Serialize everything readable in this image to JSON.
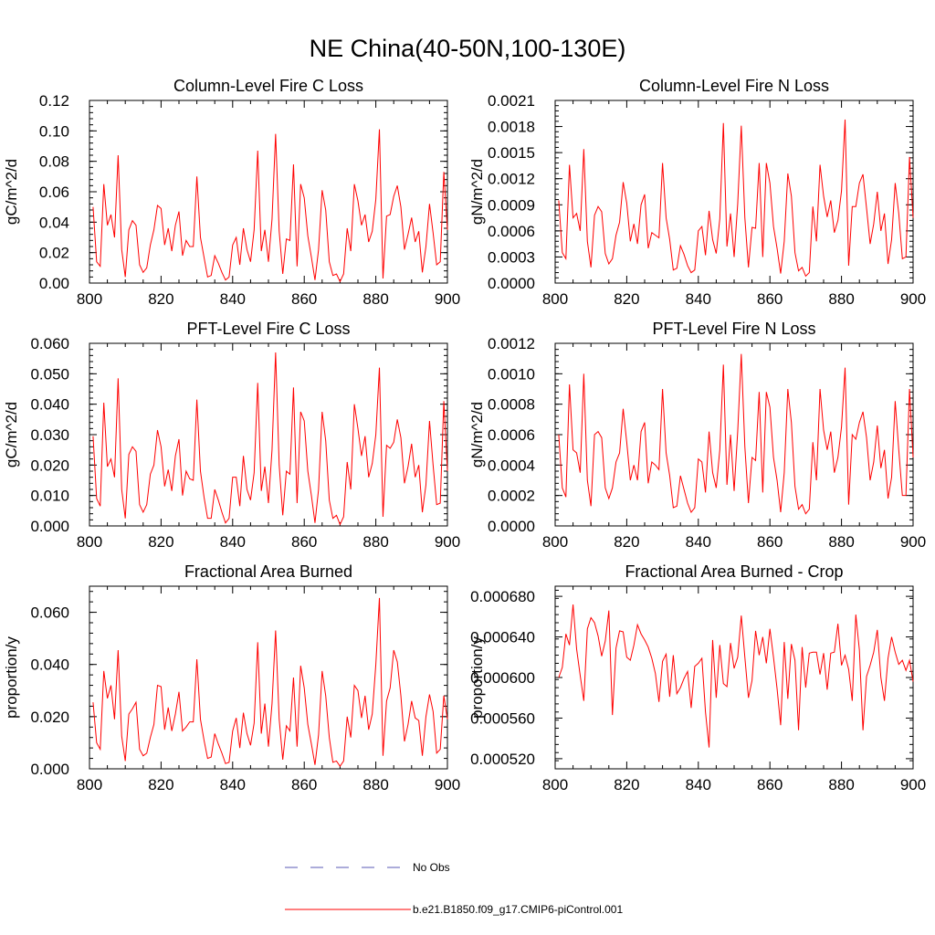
{
  "figure": {
    "title": "NE China(40-50N,100-130E)",
    "legend": [
      {
        "label": "No Obs",
        "color": "#5a5ab4",
        "style": "dashed"
      },
      {
        "label": "b.e21.B1850.f09_g17.CMIP6-piControl.001",
        "color": "#ff0000",
        "style": "solid"
      }
    ]
  },
  "chart_data": [
    {
      "type": "line",
      "title": "Column-Level Fire C Loss",
      "xlabel": "",
      "ylabel": "gC/m^2/d",
      "xlim": [
        800,
        900
      ],
      "ylim": [
        0,
        0.12
      ],
      "xticks": [
        "800",
        "820",
        "840",
        "860",
        "880",
        "900"
      ],
      "yticks": [
        "0.00",
        "0.02",
        "0.04",
        "0.06",
        "0.08",
        "0.10",
        "0.12"
      ],
      "series": [
        {
          "name": "b.e21.B1850.f09_g17.CMIP6-piControl.001",
          "color": "#ff0000",
          "x_start": 801,
          "values": [
            0.05,
            0.014,
            0.011,
            0.065,
            0.038,
            0.045,
            0.03,
            0.084,
            0.022,
            0.004,
            0.035,
            0.041,
            0.038,
            0.012,
            0.007,
            0.01,
            0.025,
            0.035,
            0.051,
            0.049,
            0.025,
            0.036,
            0.021,
            0.038,
            0.047,
            0.018,
            0.028,
            0.024,
            0.024,
            0.07,
            0.03,
            0.017,
            0.004,
            0.005,
            0.018,
            0.013,
            0.007,
            0.002,
            0.004,
            0.025,
            0.03,
            0.012,
            0.036,
            0.022,
            0.014,
            0.035,
            0.087,
            0.021,
            0.035,
            0.014,
            0.042,
            0.098,
            0.034,
            0.006,
            0.029,
            0.028,
            0.078,
            0.011,
            0.065,
            0.056,
            0.031,
            0.017,
            0.002,
            0.022,
            0.061,
            0.048,
            0.014,
            0.005,
            0.006,
            0.001,
            0.006,
            0.036,
            0.021,
            0.065,
            0.054,
            0.038,
            0.045,
            0.027,
            0.034,
            0.055,
            0.101,
            0.003,
            0.044,
            0.045,
            0.057,
            0.064,
            0.05,
            0.022,
            0.032,
            0.043,
            0.027,
            0.034,
            0.007,
            0.024,
            0.052,
            0.033,
            0.012,
            0.014,
            0.073,
            0.035
          ]
        }
      ]
    },
    {
      "type": "line",
      "title": "Column-Level Fire N Loss",
      "xlabel": "",
      "ylabel": "gN/m^2/d",
      "xlim": [
        800,
        900
      ],
      "ylim": [
        0,
        0.0021
      ],
      "xticks": [
        "800",
        "820",
        "840",
        "860",
        "880",
        "900"
      ],
      "yticks": [
        "0.0000",
        "0.0003",
        "0.0006",
        "0.0009",
        "0.0012",
        "0.0015",
        "0.0018",
        "0.0021"
      ],
      "series": [
        {
          "name": "b.e21.B1850.f09_g17.CMIP6-piControl.001",
          "color": "#ff0000",
          "x_start": 801,
          "values": [
            0.00095,
            0.00035,
            0.00028,
            0.00136,
            0.00075,
            0.0008,
            0.0006,
            0.00154,
            0.00048,
            0.00018,
            0.00078,
            0.00088,
            0.00082,
            0.00034,
            0.00022,
            0.00028,
            0.00055,
            0.0007,
            0.00116,
            0.00092,
            0.00048,
            0.00068,
            0.00045,
            0.0009,
            0.00102,
            0.0004,
            0.00058,
            0.00055,
            0.00052,
            0.00138,
            0.00075,
            0.0005,
            0.00015,
            0.00017,
            0.00043,
            0.00033,
            0.0002,
            0.00012,
            0.00015,
            0.0006,
            0.00065,
            0.00032,
            0.00083,
            0.0005,
            0.00034,
            0.00074,
            0.00184,
            0.00042,
            0.0008,
            0.0003,
            0.00091,
            0.00181,
            0.00075,
            0.00018,
            0.00064,
            0.00063,
            0.00138,
            0.0003,
            0.00138,
            0.00115,
            0.00065,
            0.0004,
            0.00011,
            0.00048,
            0.00126,
            0.001,
            0.00035,
            0.00014,
            0.00018,
            8e-05,
            0.00012,
            0.00088,
            0.00048,
            0.00136,
            0.001,
            0.00076,
            0.00095,
            0.00058,
            0.00072,
            0.00106,
            0.00188,
            0.0002,
            0.00088,
            0.00088,
            0.00115,
            0.00125,
            0.00086,
            0.00045,
            0.00068,
            0.00105,
            0.0006,
            0.0008,
            0.00022,
            0.0005,
            0.00115,
            0.0008,
            0.00028,
            0.0003,
            0.00145,
            0.00075
          ]
        }
      ]
    },
    {
      "type": "line",
      "title": "PFT-Level Fire C Loss",
      "xlabel": "",
      "ylabel": "gC/m^2/d",
      "xlim": [
        800,
        900
      ],
      "ylim": [
        0,
        0.06
      ],
      "xticks": [
        "800",
        "820",
        "840",
        "860",
        "880",
        "900"
      ],
      "yticks": [
        "0.000",
        "0.010",
        "0.020",
        "0.030",
        "0.040",
        "0.050",
        "0.060"
      ],
      "series": [
        {
          "name": "b.e21.B1850.f09_g17.CMIP6-piControl.001",
          "color": "#ff0000",
          "x_start": 801,
          "values": [
            0.0295,
            0.009,
            0.0065,
            0.0405,
            0.0195,
            0.022,
            0.016,
            0.0485,
            0.012,
            0.0025,
            0.0235,
            0.026,
            0.0245,
            0.007,
            0.0045,
            0.007,
            0.017,
            0.02,
            0.0315,
            0.026,
            0.013,
            0.0185,
            0.0115,
            0.023,
            0.0285,
            0.01,
            0.018,
            0.0155,
            0.015,
            0.0415,
            0.018,
            0.0095,
            0.0025,
            0.0025,
            0.012,
            0.0085,
            0.0045,
            0.001,
            0.0025,
            0.016,
            0.016,
            0.0065,
            0.023,
            0.012,
            0.0085,
            0.0175,
            0.047,
            0.0115,
            0.0195,
            0.0075,
            0.025,
            0.057,
            0.02,
            0.0035,
            0.018,
            0.017,
            0.0455,
            0.0075,
            0.0375,
            0.0345,
            0.018,
            0.01,
            0.001,
            0.012,
            0.0375,
            0.028,
            0.0085,
            0.0025,
            0.0035,
            0.0005,
            0.003,
            0.021,
            0.012,
            0.04,
            0.032,
            0.023,
            0.0295,
            0.016,
            0.0205,
            0.03,
            0.052,
            0.003,
            0.0265,
            0.0255,
            0.0275,
            0.035,
            0.029,
            0.014,
            0.0195,
            0.027,
            0.016,
            0.02,
            0.0045,
            0.0135,
            0.0345,
            0.02,
            0.007,
            0.0075,
            0.041,
            0.018
          ]
        }
      ]
    },
    {
      "type": "line",
      "title": "PFT-Level Fire N Loss",
      "xlabel": "",
      "ylabel": "gN/m^2/d",
      "xlim": [
        800,
        900
      ],
      "ylim": [
        0,
        0.0012
      ],
      "xticks": [
        "800",
        "820",
        "840",
        "860",
        "880",
        "900"
      ],
      "yticks": [
        "0.0000",
        "0.0002",
        "0.0004",
        "0.0006",
        "0.0008",
        "0.0010",
        "0.0012"
      ],
      "series": [
        {
          "name": "b.e21.B1850.f09_g17.CMIP6-piControl.001",
          "color": "#ff0000",
          "x_start": 801,
          "values": [
            0.0006,
            0.00025,
            0.00019,
            0.00093,
            0.0005,
            0.00048,
            0.00035,
            0.001,
            0.0003,
            0.00013,
            0.0006,
            0.00062,
            0.00058,
            0.00025,
            0.00018,
            0.00025,
            0.00042,
            0.00048,
            0.00077,
            0.00055,
            0.0003,
            0.0004,
            0.0003,
            0.00062,
            0.00068,
            0.00028,
            0.00042,
            0.0004,
            0.00037,
            0.0009,
            0.00048,
            0.00033,
            0.00012,
            0.00013,
            0.00033,
            0.00024,
            0.00015,
            9e-05,
            0.00012,
            0.00044,
            0.00042,
            0.00022,
            0.00062,
            0.00035,
            0.00025,
            0.0005,
            0.00106,
            0.00027,
            0.0006,
            0.00023,
            0.00062,
            0.00113,
            0.00052,
            0.00015,
            0.00045,
            0.00043,
            0.00088,
            0.00022,
            0.00088,
            0.00078,
            0.00045,
            0.0003,
            9e-05,
            0.00035,
            0.0009,
            0.00068,
            0.00026,
            0.00011,
            0.00014,
            8e-05,
            0.00011,
            0.00055,
            0.0003,
            0.0009,
            0.00063,
            0.0005,
            0.00062,
            0.00035,
            0.00045,
            0.00065,
            0.00104,
            0.00014,
            0.0006,
            0.00057,
            0.00068,
            0.00075,
            0.00058,
            0.0003,
            0.00042,
            0.00066,
            0.00038,
            0.0005,
            0.00018,
            0.00032,
            0.00082,
            0.0005,
            0.0002,
            0.0002,
            0.0009,
            0.00045
          ]
        }
      ]
    },
    {
      "type": "line",
      "title": "Fractional Area Burned",
      "xlabel": "",
      "ylabel": "proportion/y",
      "xlim": [
        800,
        900
      ],
      "ylim": [
        0,
        0.07
      ],
      "xticks": [
        "800",
        "820",
        "840",
        "860",
        "880",
        "900"
      ],
      "yticks": [
        "0.000",
        "0.020",
        "0.040",
        "0.060"
      ],
      "series": [
        {
          "name": "b.e21.B1850.f09_g17.CMIP6-piControl.001",
          "color": "#ff0000",
          "x_start": 801,
          "values": [
            0.0255,
            0.01,
            0.0075,
            0.0375,
            0.027,
            0.032,
            0.019,
            0.0455,
            0.0125,
            0.003,
            0.021,
            0.023,
            0.0255,
            0.0075,
            0.005,
            0.006,
            0.012,
            0.017,
            0.032,
            0.0315,
            0.015,
            0.0235,
            0.0145,
            0.021,
            0.0295,
            0.0145,
            0.016,
            0.018,
            0.018,
            0.042,
            0.019,
            0.011,
            0.004,
            0.0045,
            0.0135,
            0.0095,
            0.006,
            0.002,
            0.0025,
            0.0145,
            0.0195,
            0.008,
            0.0215,
            0.0135,
            0.009,
            0.0175,
            0.0485,
            0.0135,
            0.025,
            0.0085,
            0.025,
            0.053,
            0.019,
            0.0035,
            0.0165,
            0.0145,
            0.035,
            0.0085,
            0.0395,
            0.031,
            0.017,
            0.0095,
            0.0015,
            0.013,
            0.0375,
            0.028,
            0.012,
            0.0025,
            0.003,
            0.001,
            0.003,
            0.02,
            0.012,
            0.032,
            0.03,
            0.0195,
            0.028,
            0.015,
            0.021,
            0.04,
            0.0655,
            0.005,
            0.026,
            0.031,
            0.0455,
            0.041,
            0.028,
            0.0105,
            0.017,
            0.026,
            0.0195,
            0.0185,
            0.005,
            0.02,
            0.0285,
            0.022,
            0.006,
            0.0075,
            0.028,
            0.019
          ]
        }
      ]
    },
    {
      "type": "line",
      "title": "Fractional Area Burned - Crop",
      "xlabel": "",
      "ylabel": "proportion/y",
      "xlim": [
        800,
        900
      ],
      "ylim": [
        0.00051,
        0.00069
      ],
      "xticks": [
        "800",
        "820",
        "840",
        "860",
        "880",
        "900"
      ],
      "yticks": [
        "0.000520",
        "0.000560",
        "0.000600",
        "0.000640",
        "0.000680"
      ],
      "series": [
        {
          "name": "b.e21.B1850.f09_g17.CMIP6-piControl.001",
          "color": "#ff0000",
          "x_start": 801,
          "values": [
            0.0006,
            0.00061,
            0.000643,
            0.000632,
            0.000672,
            0.000628,
            0.000602,
            0.000577,
            0.000648,
            0.000659,
            0.000654,
            0.000641,
            0.000621,
            0.000636,
            0.000666,
            0.000563,
            0.000629,
            0.000646,
            0.000645,
            0.00062,
            0.000617,
            0.000632,
            0.000652,
            0.000643,
            0.000637,
            0.00063,
            0.000619,
            0.000604,
            0.000576,
            0.000616,
            0.000623,
            0.000581,
            0.000622,
            0.000584,
            0.00059,
            0.000599,
            0.000606,
            0.00057,
            0.000611,
            0.000614,
            0.000619,
            0.000566,
            0.000531,
            0.000637,
            0.00058,
            0.000632,
            0.000594,
            0.000591,
            0.000634,
            0.000609,
            0.00062,
            0.000661,
            0.00062,
            0.00058,
            0.000597,
            0.000646,
            0.000622,
            0.00064,
            0.000614,
            0.000648,
            0.00062,
            0.000589,
            0.000553,
            0.000635,
            0.000579,
            0.000633,
            0.000617,
            0.000548,
            0.00063,
            0.00059,
            0.000624,
            0.000625,
            0.000625,
            0.000603,
            0.000624,
            0.000588,
            0.000624,
            0.000625,
            0.000653,
            0.000612,
            0.000622,
            0.000608,
            0.000577,
            0.000662,
            0.000627,
            0.000548,
            0.000601,
            0.000612,
            0.000625,
            0.000647,
            0.0006,
            0.000577,
            0.000619,
            0.00064,
            0.000625,
            0.000613,
            0.000617,
            0.000607,
            0.000617,
            0.000596
          ]
        }
      ]
    }
  ]
}
